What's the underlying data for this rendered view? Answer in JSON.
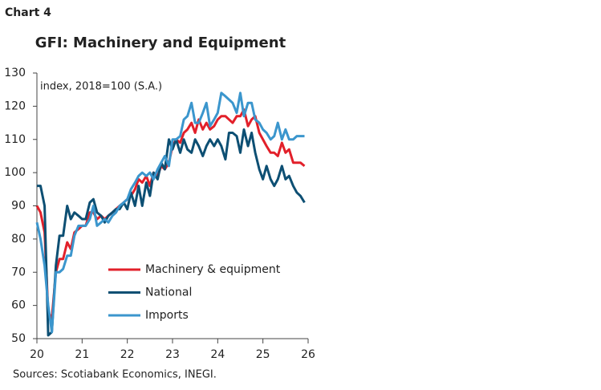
{
  "chart_data": {
    "type": "line",
    "label": "Chart 4",
    "title": "GFI: Machinery and Equipment",
    "annotation": "index, 2018=100 (S.A.)",
    "source": "Sources: Scotiabank Economics, INEGI.",
    "x": [
      20,
      20.08,
      20.17,
      20.25,
      20.33,
      20.42,
      20.5,
      20.58,
      20.67,
      20.75,
      20.83,
      20.92,
      21,
      21.08,
      21.17,
      21.25,
      21.33,
      21.42,
      21.5,
      21.58,
      21.67,
      21.75,
      21.83,
      21.92,
      22,
      22.08,
      22.17,
      22.25,
      22.33,
      22.42,
      22.5,
      22.58,
      22.67,
      22.75,
      22.83,
      22.92,
      23,
      23.08,
      23.17,
      23.25,
      23.33,
      23.42,
      23.5,
      23.58,
      23.67,
      23.75,
      23.83,
      23.92,
      24,
      24.08,
      24.17,
      24.25,
      24.33,
      24.42,
      24.5,
      24.58,
      24.67,
      24.75,
      24.83,
      24.92,
      25,
      25.08,
      25.17,
      25.25,
      25.33,
      25.42,
      25.5,
      25.58,
      25.67,
      25.75,
      25.83,
      25.92
    ],
    "series": [
      {
        "name": "Machinery & equipment",
        "color": "#e2202a",
        "values": [
          90,
          88,
          82,
          58,
          56,
          70,
          74,
          74,
          79,
          77,
          82,
          83,
          84,
          84,
          88,
          88,
          86,
          87,
          86,
          87,
          88,
          89,
          90,
          91,
          92,
          93,
          95,
          98,
          97,
          99,
          96,
          100,
          99,
          102,
          101,
          103,
          108,
          110,
          109,
          112,
          113,
          115,
          112,
          116,
          113,
          115,
          113,
          114,
          116,
          117,
          117,
          116,
          115,
          117,
          117,
          119,
          114,
          116,
          117,
          112,
          110,
          108,
          106,
          106,
          105,
          109,
          106,
          107,
          103,
          103,
          103,
          102
        ]
      },
      {
        "name": "National",
        "color": "#0d4f73",
        "values": [
          96,
          96,
          90,
          51,
          52,
          72,
          81,
          81,
          90,
          86,
          88,
          87,
          86,
          86,
          91,
          92,
          88,
          87,
          85,
          87,
          88,
          89,
          89,
          91,
          89,
          94,
          90,
          96,
          90,
          97,
          93,
          100,
          98,
          103,
          101,
          110,
          107,
          110,
          106,
          110,
          107,
          106,
          110,
          108,
          105,
          108,
          110,
          108,
          110,
          108,
          104,
          112,
          112,
          111,
          106,
          113,
          108,
          112,
          106,
          101,
          98,
          102,
          98,
          96,
          98,
          102,
          98,
          99,
          96,
          94,
          93,
          91
        ]
      },
      {
        "name": "Imports",
        "color": "#3b96cd",
        "values": [
          85,
          80,
          72,
          60,
          52,
          70,
          70,
          71,
          75,
          75,
          81,
          84,
          84,
          84,
          86,
          90,
          84,
          85,
          86,
          85,
          87,
          88,
          90,
          91,
          92,
          95,
          97,
          99,
          100,
          99,
          100,
          98,
          101,
          103,
          105,
          102,
          110,
          110,
          111,
          116,
          117,
          121,
          115,
          115,
          118,
          121,
          114,
          116,
          118,
          124,
          123,
          122,
          121,
          118,
          124,
          117,
          121,
          121,
          116,
          115,
          113,
          112,
          110,
          111,
          115,
          110,
          113,
          110,
          110,
          111,
          111,
          111
        ]
      }
    ],
    "xlim": [
      20,
      26
    ],
    "xticks": [
      20,
      21,
      22,
      23,
      24,
      25,
      26
    ],
    "ylim": [
      50,
      130
    ],
    "yticks": [
      50,
      60,
      70,
      80,
      90,
      100,
      110,
      120,
      130
    ]
  }
}
